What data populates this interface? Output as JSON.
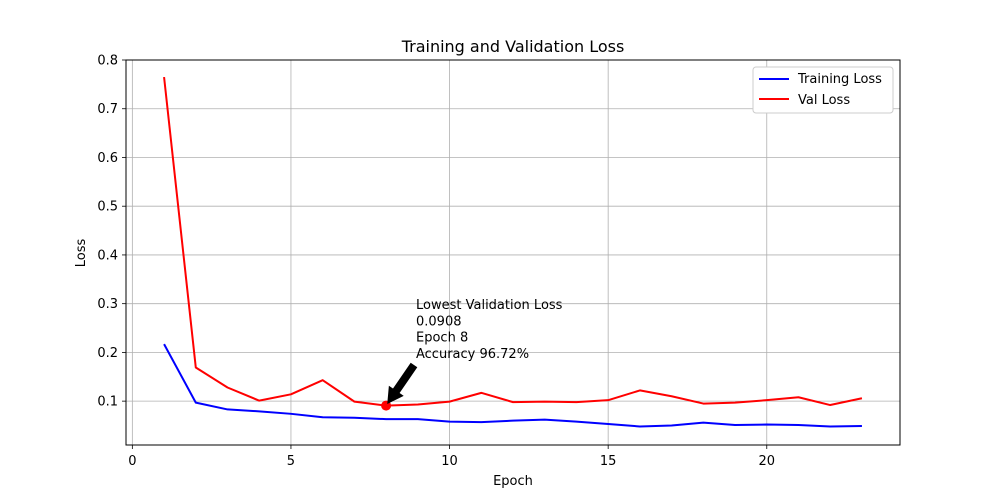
{
  "chart_data": {
    "type": "line",
    "title": "Training and Validation Loss",
    "xlabel": "Epoch",
    "ylabel": "Loss",
    "xlim": [
      -0.2,
      24.2
    ],
    "ylim": [
      0.01,
      0.8
    ],
    "xticks": [
      0,
      5,
      10,
      15,
      20
    ],
    "yticks": [
      0.1,
      0.2,
      0.3,
      0.4,
      0.5,
      0.6,
      0.7,
      0.8
    ],
    "xtick_labels": [
      "0",
      "5",
      "10",
      "15",
      "20"
    ],
    "ytick_labels": [
      "0.1",
      "0.2",
      "0.3",
      "0.4",
      "0.5",
      "0.6",
      "0.7",
      "0.8"
    ],
    "grid": true,
    "legend_position": "top-right",
    "x": [
      1,
      2,
      3,
      4,
      5,
      6,
      7,
      8,
      9,
      10,
      11,
      12,
      13,
      14,
      15,
      16,
      17,
      18,
      19,
      20,
      21,
      22,
      23
    ],
    "series": [
      {
        "name": "Training Loss",
        "color": "#0000ff",
        "values": [
          0.217,
          0.097,
          0.083,
          0.079,
          0.074,
          0.067,
          0.066,
          0.063,
          0.063,
          0.058,
          0.057,
          0.06,
          0.062,
          0.058,
          0.053,
          0.048,
          0.05,
          0.056,
          0.051,
          0.052,
          0.051,
          0.048,
          0.049
        ]
      },
      {
        "name": "Val Loss",
        "color": "#ff0000",
        "values": [
          0.765,
          0.169,
          0.128,
          0.101,
          0.114,
          0.143,
          0.099,
          0.0908,
          0.093,
          0.099,
          0.117,
          0.098,
          0.099,
          0.098,
          0.102,
          0.122,
          0.11,
          0.095,
          0.097,
          0.102,
          0.108,
          0.092,
          0.106
        ]
      }
    ],
    "annotation": {
      "lines": [
        "Lowest Validation Loss",
        "0.0908",
        "Epoch 8",
        "Accuracy 96.72%"
      ],
      "point_x": 8,
      "point_y": 0.0908,
      "marker_color": "#ff0000",
      "arrow_color": "#000000"
    }
  }
}
